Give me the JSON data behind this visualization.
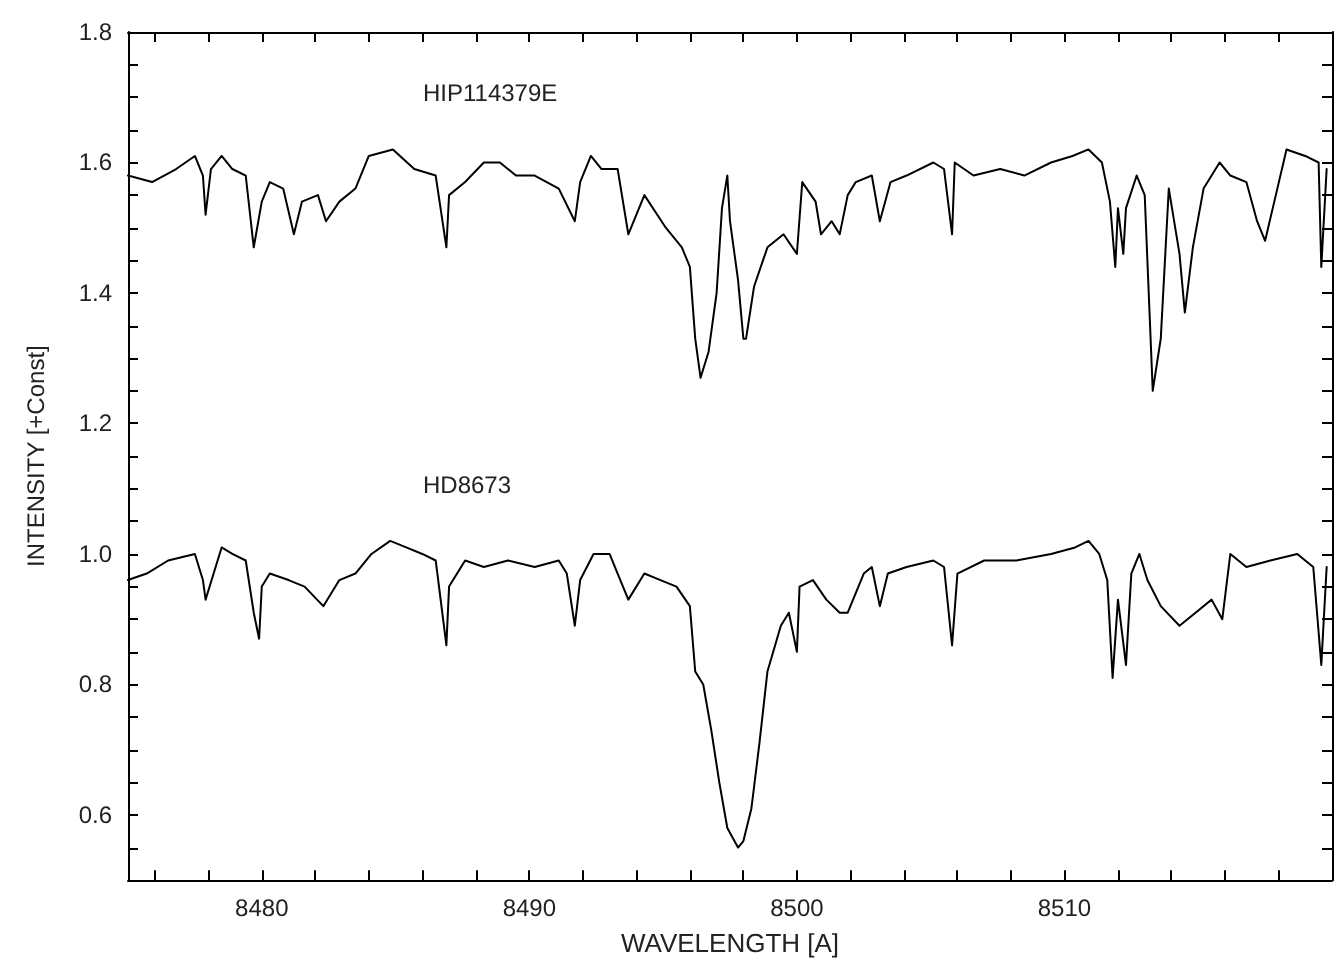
{
  "chart_data": {
    "type": "line",
    "xlabel": "WAVELENGTH [A]",
    "ylabel": "INTENSITY [+Const]",
    "xlim": [
      8475,
      8520
    ],
    "ylim": [
      0.5,
      1.8
    ],
    "xticks": [
      {
        "value": 8476,
        "label": null
      },
      {
        "value": 8478,
        "label": null
      },
      8480,
      {
        "value": 8482,
        "label": null
      },
      {
        "value": 8484,
        "label": null
      },
      {
        "value": 8486,
        "label": null
      },
      {
        "value": 8488,
        "label": null
      },
      8490,
      {
        "value": 8492,
        "label": null
      },
      {
        "value": 8494,
        "label": null
      },
      {
        "value": 8496,
        "label": null
      },
      {
        "value": 8498,
        "label": null
      },
      8500,
      {
        "value": 8502,
        "label": null
      },
      {
        "value": 8504,
        "label": null
      },
      {
        "value": 8506,
        "label": null
      },
      {
        "value": 8508,
        "label": null
      },
      8510,
      {
        "value": 8512,
        "label": null
      },
      {
        "value": 8514,
        "label": null
      },
      {
        "value": 8516,
        "label": null
      },
      {
        "value": 8518,
        "label": null
      }
    ],
    "yticks": [
      {
        "value": 0.55,
        "label": null
      },
      {
        "value": 0.6,
        "label": "0.6"
      },
      {
        "value": 0.65,
        "label": null
      },
      {
        "value": 0.7,
        "label": null
      },
      {
        "value": 0.75,
        "label": null
      },
      {
        "value": 0.8,
        "label": "0.8"
      },
      {
        "value": 0.85,
        "label": null
      },
      {
        "value": 0.9,
        "label": null
      },
      {
        "value": 0.95,
        "label": null
      },
      {
        "value": 1.0,
        "label": "1.0"
      },
      {
        "value": 1.05,
        "label": null
      },
      {
        "value": 1.1,
        "label": null
      },
      {
        "value": 1.15,
        "label": null
      },
      {
        "value": 1.2,
        "label": "1.2"
      },
      {
        "value": 1.25,
        "label": null
      },
      {
        "value": 1.3,
        "label": null
      },
      {
        "value": 1.35,
        "label": null
      },
      {
        "value": 1.4,
        "label": "1.4"
      },
      {
        "value": 1.45,
        "label": null
      },
      {
        "value": 1.5,
        "label": null
      },
      {
        "value": 1.55,
        "label": null
      },
      {
        "value": 1.6,
        "label": "1.6"
      },
      {
        "value": 1.65,
        "label": null
      },
      {
        "value": 1.7,
        "label": null
      },
      {
        "value": 1.75,
        "label": null
      },
      {
        "value": 1.8,
        "label": "1.8"
      }
    ],
    "grid": false,
    "legend": false,
    "marker": "none",
    "line_style": "solid",
    "series": [
      {
        "name": "HIP114379E",
        "color": "#000000",
        "x": [
          8475.0,
          8475.9,
          8476.8,
          8477.5,
          8477.8,
          8477.9,
          8478.1,
          8478.5,
          8478.9,
          8479.4,
          8479.7,
          8480.0,
          8480.3,
          8480.8,
          8481.2,
          8481.5,
          8482.1,
          8482.4,
          8482.9,
          8483.5,
          8484.0,
          8484.9,
          8485.7,
          8486.5,
          8486.9,
          8487.0,
          8487.6,
          8488.3,
          8488.9,
          8489.5,
          8490.2,
          8491.1,
          8491.7,
          8491.9,
          8492.3,
          8492.7,
          8493.3,
          8493.7,
          8494.3,
          8495.1,
          8495.7,
          8496.0,
          8496.2,
          8496.4,
          8496.7,
          8497.0,
          8497.2,
          8497.4,
          8497.5,
          8497.8,
          8498.0,
          8498.1,
          8498.4,
          8498.9,
          8499.5,
          8500.0,
          8500.2,
          8500.7,
          8500.9,
          8501.3,
          8501.6,
          8501.9,
          8502.2,
          8502.8,
          8503.1,
          8503.5,
          8504.1,
          8505.1,
          8505.5,
          8505.8,
          8505.9,
          8506.6,
          8507.6,
          8508.5,
          8509.5,
          8510.3,
          8510.9,
          8511.4,
          8511.7,
          8511.9,
          8512.0,
          8512.2,
          8512.3,
          8512.7,
          8513.0,
          8513.3,
          8513.6,
          8513.9,
          8514.3,
          8514.5,
          8514.8,
          8515.2,
          8515.8,
          8516.2,
          8516.8,
          8517.2,
          8517.5,
          8517.9,
          8518.3,
          8519.0,
          8519.5,
          8519.6,
          8519.8
        ],
        "values": [
          1.58,
          1.57,
          1.59,
          1.61,
          1.58,
          1.52,
          1.59,
          1.61,
          1.59,
          1.58,
          1.47,
          1.54,
          1.57,
          1.56,
          1.49,
          1.54,
          1.55,
          1.51,
          1.54,
          1.56,
          1.61,
          1.62,
          1.59,
          1.58,
          1.47,
          1.55,
          1.57,
          1.6,
          1.6,
          1.58,
          1.58,
          1.56,
          1.51,
          1.57,
          1.61,
          1.59,
          1.59,
          1.49,
          1.55,
          1.5,
          1.47,
          1.44,
          1.33,
          1.27,
          1.31,
          1.4,
          1.53,
          1.58,
          1.51,
          1.42,
          1.33,
          1.33,
          1.41,
          1.47,
          1.49,
          1.46,
          1.57,
          1.54,
          1.49,
          1.51,
          1.49,
          1.55,
          1.57,
          1.58,
          1.51,
          1.57,
          1.58,
          1.6,
          1.59,
          1.49,
          1.6,
          1.58,
          1.59,
          1.58,
          1.6,
          1.61,
          1.62,
          1.6,
          1.54,
          1.44,
          1.53,
          1.46,
          1.53,
          1.58,
          1.55,
          1.25,
          1.33,
          1.56,
          1.46,
          1.37,
          1.47,
          1.56,
          1.6,
          1.58,
          1.57,
          1.51,
          1.48,
          1.55,
          1.62,
          1.61,
          1.6,
          1.44,
          1.59
        ]
      },
      {
        "name": "HD8673",
        "color": "#000000",
        "x": [
          8475.0,
          8475.7,
          8476.5,
          8477.5,
          8477.8,
          8477.9,
          8478.2,
          8478.5,
          8478.9,
          8479.4,
          8479.7,
          8479.9,
          8480.0,
          8480.3,
          8481.0,
          8481.6,
          8482.3,
          8482.9,
          8483.5,
          8484.1,
          8484.8,
          8485.4,
          8486.0,
          8486.5,
          8486.9,
          8487.0,
          8487.6,
          8488.3,
          8489.2,
          8490.2,
          8491.1,
          8491.4,
          8491.7,
          8491.9,
          8492.4,
          8493.0,
          8493.3,
          8493.7,
          8494.3,
          8494.9,
          8495.5,
          8496.0,
          8496.2,
          8496.5,
          8496.8,
          8497.1,
          8497.4,
          8497.8,
          8498.0,
          8498.3,
          8498.6,
          8498.9,
          8499.4,
          8499.7,
          8500.0,
          8500.1,
          8500.6,
          8501.1,
          8501.6,
          8501.9,
          8502.5,
          8502.8,
          8503.1,
          8503.4,
          8504.1,
          8505.1,
          8505.5,
          8505.8,
          8506.0,
          8507.0,
          8508.2,
          8509.5,
          8510.4,
          8510.9,
          8511.3,
          8511.6,
          8511.8,
          8512.0,
          8512.3,
          8512.5,
          8512.8,
          8513.1,
          8513.6,
          8514.3,
          8514.9,
          8515.5,
          8515.9,
          8516.2,
          8516.8,
          8517.7,
          8518.7,
          8519.3,
          8519.6,
          8519.8
        ],
        "values": [
          0.96,
          0.97,
          0.99,
          1.0,
          0.96,
          0.93,
          0.97,
          1.01,
          1.0,
          0.99,
          0.91,
          0.87,
          0.95,
          0.97,
          0.96,
          0.95,
          0.92,
          0.96,
          0.97,
          1.0,
          1.02,
          1.01,
          1.0,
          0.99,
          0.86,
          0.95,
          0.99,
          0.98,
          0.99,
          0.98,
          0.99,
          0.97,
          0.89,
          0.96,
          1.0,
          1.0,
          0.97,
          0.93,
          0.97,
          0.96,
          0.95,
          0.92,
          0.82,
          0.8,
          0.73,
          0.65,
          0.58,
          0.55,
          0.56,
          0.61,
          0.71,
          0.82,
          0.89,
          0.91,
          0.85,
          0.95,
          0.96,
          0.93,
          0.91,
          0.91,
          0.97,
          0.98,
          0.92,
          0.97,
          0.98,
          0.99,
          0.98,
          0.86,
          0.97,
          0.99,
          0.99,
          1.0,
          1.01,
          1.02,
          1.0,
          0.96,
          0.81,
          0.93,
          0.83,
          0.97,
          1.0,
          0.96,
          0.92,
          0.89,
          0.91,
          0.93,
          0.9,
          1.0,
          0.98,
          0.99,
          1.0,
          0.98,
          0.83,
          0.98
        ]
      }
    ]
  }
}
